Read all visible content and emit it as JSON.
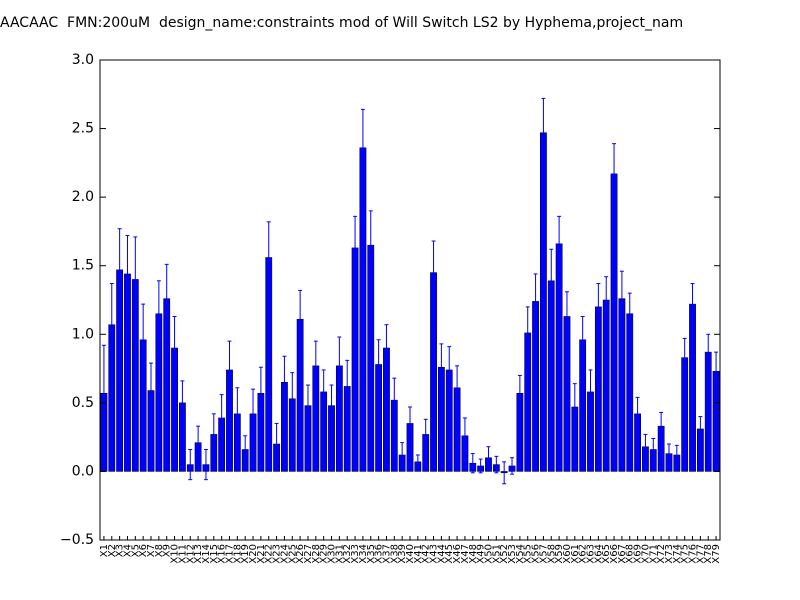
{
  "chart_data": {
    "type": "bar",
    "title": "AACAAC  FMN:200uM  design_name:constraints mod of Will Switch LS2 by Hyphema,project_nam",
    "categories": [
      "X1",
      "X2",
      "X3",
      "X4",
      "X5",
      "X6",
      "X7",
      "X8",
      "X9",
      "X10",
      "X11",
      "X12",
      "X13",
      "X14",
      "X15",
      "X16",
      "X17",
      "X18",
      "X19",
      "X20",
      "X21",
      "X22",
      "X23",
      "X24",
      "X25",
      "X26",
      "X27",
      "X28",
      "X29",
      "X30",
      "X31",
      "X32",
      "X33",
      "X34",
      "X35",
      "X36",
      "X37",
      "X38",
      "X39",
      "X40",
      "X41",
      "X42",
      "X43",
      "X44",
      "X45",
      "X46",
      "X47",
      "X48",
      "X49",
      "X50",
      "X51",
      "X52",
      "X53",
      "X54",
      "X55",
      "X56",
      "X57",
      "X58",
      "X59",
      "X60",
      "X61",
      "X62",
      "X63",
      "X64",
      "X65",
      "X66",
      "X67",
      "X68",
      "X69",
      "X70",
      "X71",
      "X72",
      "X73",
      "X74",
      "X75",
      "X76",
      "X77",
      "X78",
      "X79"
    ],
    "values": [
      0.57,
      1.07,
      1.47,
      1.44,
      1.4,
      0.96,
      0.59,
      1.15,
      1.26,
      0.9,
      0.5,
      0.05,
      0.21,
      0.05,
      0.27,
      0.39,
      0.74,
      0.42,
      0.16,
      0.42,
      0.57,
      1.56,
      0.2,
      0.65,
      0.53,
      1.11,
      0.48,
      0.77,
      0.58,
      0.48,
      0.77,
      0.62,
      1.63,
      2.36,
      1.65,
      0.78,
      0.9,
      0.52,
      0.12,
      0.35,
      0.07,
      0.27,
      1.45,
      0.76,
      0.74,
      0.61,
      0.26,
      0.06,
      0.04,
      0.1,
      0.05,
      -0.01,
      0.04,
      0.57,
      1.01,
      1.24,
      2.47,
      1.39,
      1.66,
      1.13,
      0.47,
      0.96,
      0.58,
      1.2,
      1.25,
      2.17,
      1.26,
      1.15,
      0.42,
      0.18,
      0.16,
      0.33,
      0.13,
      0.12,
      0.83,
      1.22,
      0.31,
      0.87,
      0.73
    ],
    "errors": [
      0.35,
      0.3,
      0.3,
      0.28,
      0.31,
      0.26,
      0.2,
      0.24,
      0.25,
      0.23,
      0.16,
      0.11,
      0.12,
      0.11,
      0.15,
      0.17,
      0.21,
      0.19,
      0.1,
      0.18,
      0.19,
      0.26,
      0.15,
      0.19,
      0.19,
      0.21,
      0.15,
      0.18,
      0.16,
      0.15,
      0.21,
      0.19,
      0.23,
      0.28,
      0.25,
      0.18,
      0.17,
      0.16,
      0.09,
      0.12,
      0.05,
      0.11,
      0.23,
      0.17,
      0.17,
      0.16,
      0.13,
      0.07,
      0.05,
      0.08,
      0.06,
      0.08,
      0.06,
      0.13,
      0.19,
      0.2,
      0.25,
      0.23,
      0.2,
      0.18,
      0.17,
      0.17,
      0.16,
      0.17,
      0.17,
      0.22,
      0.2,
      0.15,
      0.12,
      0.09,
      0.08,
      0.1,
      0.07,
      0.07,
      0.14,
      0.15,
      0.09,
      0.13,
      0.14
    ],
    "color": "#0000ff",
    "ylim": [
      -0.5,
      3.0
    ],
    "yticks": [
      {
        "value": -0.5,
        "label": "−0.5"
      },
      {
        "value": 0,
        "label": "0.0"
      },
      {
        "value": 0.5,
        "label": "0.5"
      },
      {
        "value": 1,
        "label": "1.0"
      },
      {
        "value": 1.5,
        "label": "1.5"
      },
      {
        "value": 2,
        "label": "2.0"
      },
      {
        "value": 2.5,
        "label": "2.5"
      },
      {
        "value": 3,
        "label": "3.0"
      }
    ]
  }
}
